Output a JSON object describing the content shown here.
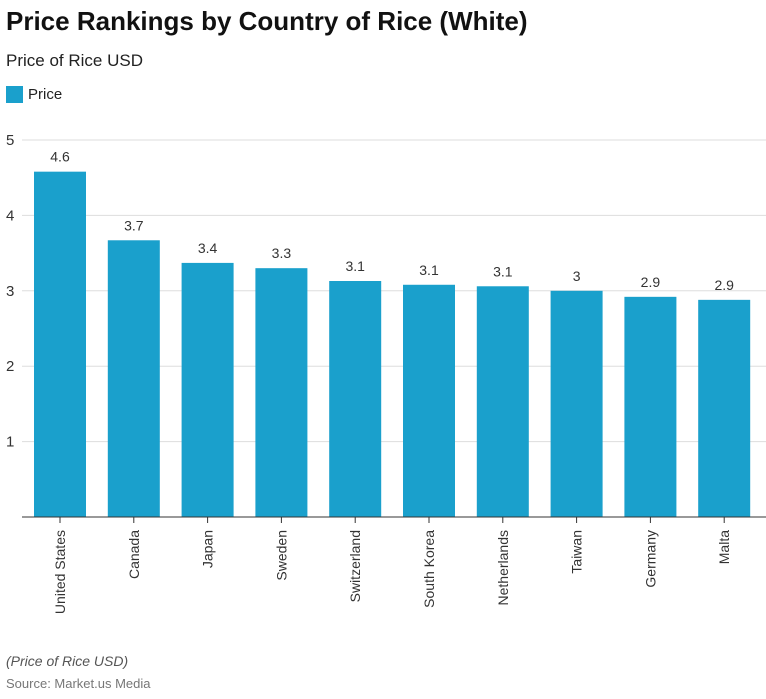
{
  "title": "Price Rankings by Country of Rice (White)",
  "subtitle": "Price of Rice USD",
  "note": "(Price of Rice USD)",
  "source": "Source: Market.us Media",
  "colors": {
    "bar": "#1aa0cc"
  },
  "chart_data": {
    "type": "bar",
    "title": "Price Rankings by Country of Rice (White)",
    "ylabel": "",
    "xlabel": "",
    "ylim": [
      0,
      5
    ],
    "yticks": [
      1,
      2,
      3,
      4,
      5
    ],
    "grid": true,
    "legend_placement": "top-left",
    "categories": [
      "United States",
      "Canada",
      "Japan",
      "Sweden",
      "Switzerland",
      "South Korea",
      "Netherlands",
      "Taiwan",
      "Germany",
      "Malta"
    ],
    "series": [
      {
        "name": "Price",
        "values": [
          4.58,
          3.67,
          3.37,
          3.3,
          3.13,
          3.08,
          3.06,
          3.0,
          2.92,
          2.88
        ],
        "labels": [
          "4.6",
          "3.7",
          "3.4",
          "3.3",
          "3.1",
          "3.1",
          "3.1",
          "3",
          "2.9",
          "2.9"
        ]
      }
    ]
  }
}
